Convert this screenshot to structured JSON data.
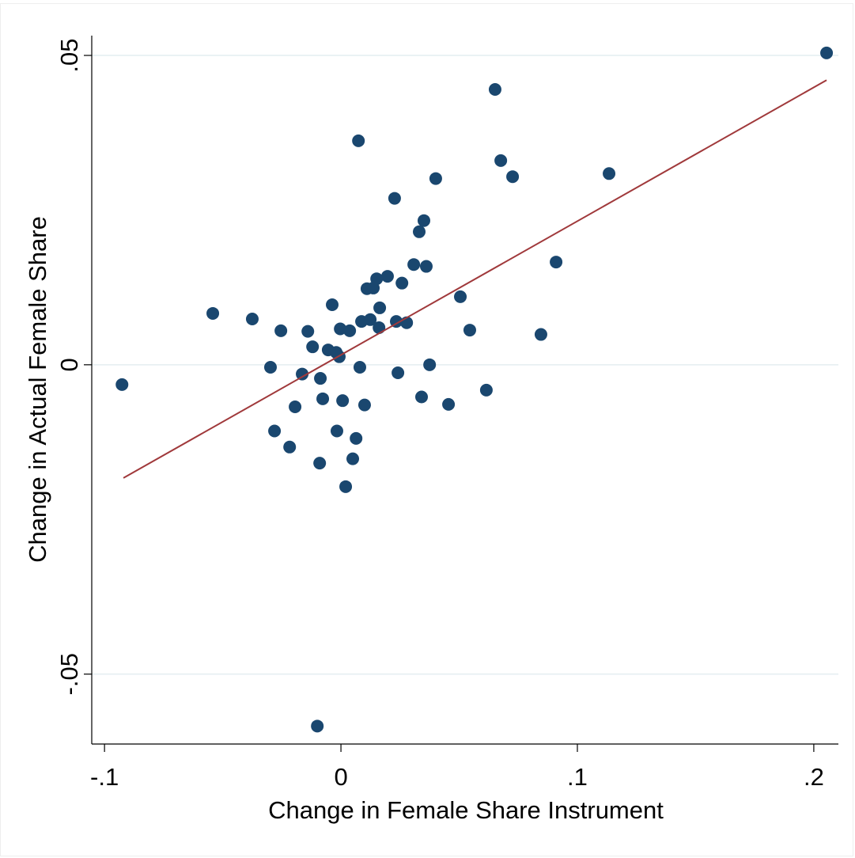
{
  "chart_data": {
    "type": "scatter",
    "xlabel": "Change in Female Share Instrument",
    "ylabel": "Change in Actual Female Share",
    "xlim": [
      -0.1054,
      0.2104
    ],
    "ylim": [
      -0.0613,
      0.0532
    ],
    "xticks": [
      {
        "value": -0.1,
        "label": "-.1"
      },
      0,
      {
        "value": 0.1,
        "label": ".1"
      },
      {
        "value": 0.2,
        "label": ".2"
      }
    ],
    "yticks": [
      {
        "value": -0.05,
        "label": "-.05"
      },
      0,
      {
        "value": 0.05,
        "label": ".05"
      }
    ],
    "grid": true,
    "series": [
      {
        "type": "scatter",
        "color": "#1a476f",
        "x": [
          0.2054,
          0.0652,
          0.0074,
          0.0676,
          0.0726,
          0.1134,
          0.0401,
          0.0227,
          0.0351,
          0.0331,
          0.0308,
          0.0361,
          0.091,
          0.0197,
          0.0151,
          0.0258,
          0.011,
          0.0137,
          0.0505,
          -0.0037,
          0.0164,
          -0.0542,
          -0.0375,
          0.0087,
          0.0124,
          0.0234,
          0.0278,
          0.0161,
          -0.0003,
          0.0037,
          -0.0254,
          -0.014,
          0.0545,
          0.0846,
          -0.012,
          -0.0054,
          -0.002,
          -0.0007,
          -0.0298,
          0.008,
          0.0375,
          -0.0164,
          0.0241,
          -0.0926,
          -0.0087,
          0.0615,
          -0.0077,
          0.0007,
          0.0341,
          -0.0194,
          0.01,
          0.0455,
          -0.0281,
          -0.0017,
          0.0064,
          -0.0217,
          0.005,
          -0.009,
          0.002,
          -0.01
        ],
        "values": [
          0.0504,
          0.0445,
          0.0362,
          0.033,
          0.0304,
          0.0309,
          0.0301,
          0.0269,
          0.0233,
          0.0215,
          0.0162,
          0.0159,
          0.0166,
          0.0143,
          0.0139,
          0.0132,
          0.0123,
          0.0124,
          0.011,
          0.0097,
          0.0092,
          0.0083,
          0.0074,
          0.007,
          0.0073,
          0.007,
          0.0068,
          0.006,
          0.0058,
          0.0055,
          0.0055,
          0.0054,
          0.0056,
          0.0049,
          0.0029,
          0.0024,
          0.002,
          0.0013,
          -0.0004,
          -0.0004,
          0.0,
          -0.0015,
          -0.0013,
          -0.0032,
          -0.0022,
          -0.0041,
          -0.0055,
          -0.0058,
          -0.0052,
          -0.0068,
          -0.0065,
          -0.0064,
          -0.0107,
          -0.0107,
          -0.0119,
          -0.0133,
          -0.0152,
          -0.0159,
          -0.0197,
          -0.0584
        ]
      },
      {
        "type": "line",
        "color": "#a0393b",
        "x": [
          -0.092,
          0.2054
        ],
        "values": [
          -0.0183,
          0.046
        ]
      }
    ]
  }
}
